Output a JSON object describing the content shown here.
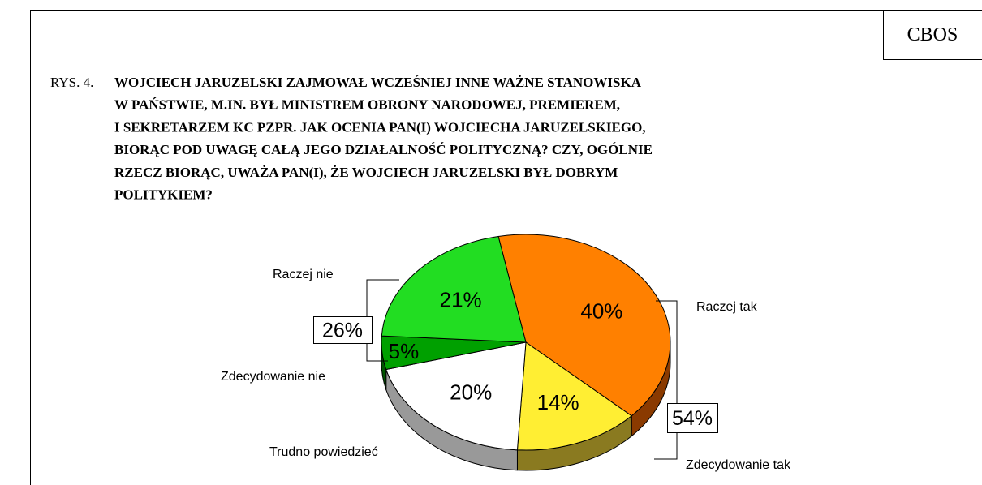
{
  "header": {
    "source": "CBOS"
  },
  "chart_data": {
    "type": "pie",
    "prefix": "RYS. 4.",
    "title": [
      "WOJCIECH JARUZELSKI ZAJMOWAŁ WCZEŚNIEJ INNE WAŻNE STANOWISKA",
      "W PAŃSTWIE, M.IN. BYŁ MINISTREM OBRONY NARODOWEJ, PREMIEREM,",
      "I SEKRETARZEM KC PZPR. JAK OCENIA PAN(I) WOJCIECHA JARUZELSKIEGO,",
      "BIORĄC POD UWAGĘ CAŁĄ JEGO DZIAŁALNOŚĆ POLITYCZNĄ? CZY, OGÓLNIE",
      "RZECZ BIORĄC, UWAŻA PAN(I), ŻE WOJCIECH JARUZELSKI BYŁ DOBRYM",
      "POLITYKIEM?"
    ],
    "categories": [
      "Raczej tak",
      "Zdecydowanie tak",
      "Trudno powiedzieć",
      "Zdecydowanie nie",
      "Raczej nie"
    ],
    "values": [
      40,
      14,
      20,
      5,
      21
    ],
    "value_labels": [
      "40%",
      "14%",
      "20%",
      "5%",
      "21%"
    ],
    "colors": [
      "#ff8000",
      "#ffee33",
      "#ffffff",
      "#00a000",
      "#22dd22"
    ],
    "side_colors": [
      "#8a3a00",
      "#8a7a20",
      "#999999",
      "#005500",
      "#118811"
    ],
    "group_totals": {
      "values": [
        54,
        26
      ],
      "value_labels": [
        "54%",
        "26%"
      ]
    }
  }
}
